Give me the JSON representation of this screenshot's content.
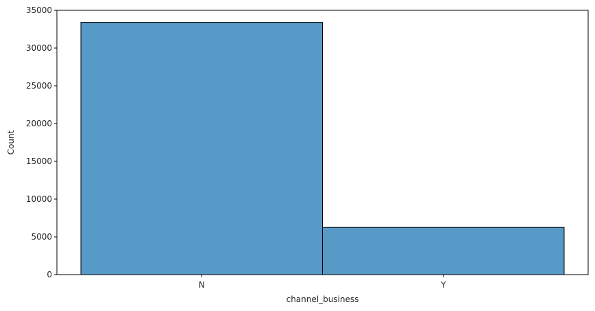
{
  "chart_data": {
    "type": "bar",
    "title": "",
    "xlabel": "channel_business",
    "ylabel": "Count",
    "categories": [
      "N",
      "Y"
    ],
    "values": [
      33400,
      6250
    ],
    "ylim": [
      0,
      35000
    ],
    "yticks": [
      0,
      5000,
      10000,
      15000,
      20000,
      25000,
      30000,
      35000
    ],
    "grid": false,
    "legend": "none",
    "colors": {
      "bar_fill": "#5799c7",
      "bar_edge": "#000000",
      "axis": "#000000"
    }
  }
}
